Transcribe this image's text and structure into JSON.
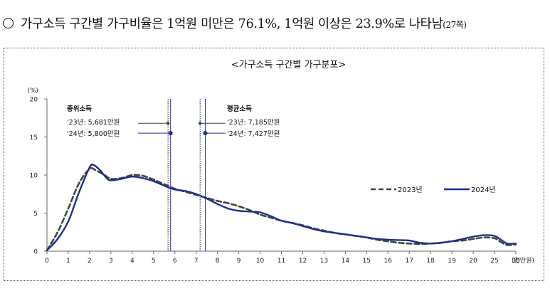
{
  "headline": {
    "text": "가구소득 구간별 가구비율은 1억원 미만은 76.1%, 1억원 이상은 23.9%로 나타남",
    "reference": "(27쪽)"
  },
  "chart_data": {
    "type": "line",
    "title": "<가구소득 구간별 가구분포>",
    "ylabel": "(%)",
    "xlabel": "(천만원)",
    "ylim": [
      0,
      20
    ],
    "yticks": [
      0,
      5,
      10,
      15,
      20
    ],
    "xlim": [
      0,
      22
    ],
    "x_ticks": [
      {
        "x": 0,
        "label": "0"
      },
      {
        "x": 1,
        "label": "1"
      },
      {
        "x": 2,
        "label": "2"
      },
      {
        "x": 3,
        "label": "3"
      },
      {
        "x": 4,
        "label": "4"
      },
      {
        "x": 5,
        "label": "5"
      },
      {
        "x": 6,
        "label": "6"
      },
      {
        "x": 7,
        "label": "7"
      },
      {
        "x": 8,
        "label": "8"
      },
      {
        "x": 9,
        "label": "9"
      },
      {
        "x": 10,
        "label": "10"
      },
      {
        "x": 11,
        "label": "11"
      },
      {
        "x": 12,
        "label": "12"
      },
      {
        "x": 13,
        "label": "13"
      },
      {
        "x": 14,
        "label": "14"
      },
      {
        "x": 15,
        "label": "15"
      },
      {
        "x": 16,
        "label": "16"
      },
      {
        "x": 17,
        "label": "17"
      },
      {
        "x": 18,
        "label": "18"
      },
      {
        "x": 19,
        "label": "19"
      },
      {
        "x": 20,
        "label": "20"
      },
      {
        "x": 21,
        "label": "25"
      },
      {
        "x": 22,
        "label": "30"
      }
    ],
    "series": [
      {
        "name": "2023년",
        "color": "#3d4a36",
        "style": "dashed",
        "points": [
          [
            0,
            0.1
          ],
          [
            0.5,
            2.5
          ],
          [
            1,
            5.6
          ],
          [
            1.5,
            8.9
          ],
          [
            2,
            10.8
          ],
          [
            2.3,
            10.6
          ],
          [
            2.7,
            10.0
          ],
          [
            3,
            9.5
          ],
          [
            3.5,
            9.6
          ],
          [
            4,
            10.0
          ],
          [
            4.5,
            9.9
          ],
          [
            5,
            9.4
          ],
          [
            5.5,
            8.8
          ],
          [
            6,
            8.2
          ],
          [
            6.5,
            7.8
          ],
          [
            7,
            7.4
          ],
          [
            7.5,
            7.0
          ],
          [
            8,
            6.6
          ],
          [
            8.5,
            6.3
          ],
          [
            9,
            5.9
          ],
          [
            9.5,
            5.4
          ],
          [
            10,
            4.8
          ],
          [
            10.5,
            4.4
          ],
          [
            11,
            4.0
          ],
          [
            11.5,
            3.7
          ],
          [
            12,
            3.4
          ],
          [
            12.5,
            3.0
          ],
          [
            13,
            2.7
          ],
          [
            13.5,
            2.4
          ],
          [
            14,
            2.2
          ],
          [
            14.5,
            2.0
          ],
          [
            15,
            1.8
          ],
          [
            15.5,
            1.5
          ],
          [
            16,
            1.3
          ],
          [
            16.5,
            1.1
          ],
          [
            17,
            1.0
          ],
          [
            17.5,
            0.95
          ],
          [
            18,
            1.0
          ],
          [
            18.5,
            1.1
          ],
          [
            19,
            1.3
          ],
          [
            19.5,
            1.4
          ],
          [
            20,
            1.6
          ],
          [
            20.5,
            1.8
          ],
          [
            21,
            1.7
          ],
          [
            21.3,
            1.2
          ],
          [
            21.6,
            0.8
          ],
          [
            22,
            0.9
          ]
        ]
      },
      {
        "name": "2024년",
        "color": "#1d2f8e",
        "style": "solid",
        "points": [
          [
            0,
            0.1
          ],
          [
            0.5,
            1.6
          ],
          [
            1,
            3.9
          ],
          [
            1.5,
            7.7
          ],
          [
            2,
            11.0
          ],
          [
            2.2,
            11.3
          ],
          [
            2.5,
            10.6
          ],
          [
            2.8,
            9.6
          ],
          [
            3,
            9.3
          ],
          [
            3.5,
            9.5
          ],
          [
            4,
            9.8
          ],
          [
            4.5,
            9.6
          ],
          [
            5,
            9.2
          ],
          [
            5.5,
            8.6
          ],
          [
            6,
            8.1
          ],
          [
            6.5,
            7.9
          ],
          [
            7,
            7.5
          ],
          [
            7.5,
            6.9
          ],
          [
            8,
            6.2
          ],
          [
            8.5,
            5.6
          ],
          [
            9,
            5.3
          ],
          [
            9.5,
            5.2
          ],
          [
            10,
            5.1
          ],
          [
            10.5,
            4.6
          ],
          [
            11,
            4.0
          ],
          [
            11.5,
            3.7
          ],
          [
            12,
            3.3
          ],
          [
            12.5,
            2.9
          ],
          [
            13,
            2.6
          ],
          [
            13.5,
            2.4
          ],
          [
            14,
            2.2
          ],
          [
            14.5,
            2.0
          ],
          [
            15,
            1.8
          ],
          [
            15.5,
            1.6
          ],
          [
            16,
            1.5
          ],
          [
            16.5,
            1.45
          ],
          [
            17,
            1.4
          ],
          [
            17.5,
            1.1
          ],
          [
            18,
            1.0
          ],
          [
            18.5,
            1.1
          ],
          [
            19,
            1.3
          ],
          [
            19.5,
            1.6
          ],
          [
            20,
            1.9
          ],
          [
            20.5,
            2.1
          ],
          [
            21,
            2.0
          ],
          [
            21.3,
            1.5
          ],
          [
            21.6,
            1.0
          ],
          [
            22,
            1.0
          ]
        ]
      }
    ],
    "legend": {
      "position": "right",
      "items": [
        "2023년",
        "2024년"
      ]
    },
    "annotations": {
      "median": {
        "label": "중위소득",
        "line_2023": {
          "label": "'23년: 5,681만원",
          "x": 5.681,
          "marker_y": 16.8
        },
        "line_2024": {
          "label": "'24년: 5,800만원",
          "x": 5.8,
          "marker_y": 15.5
        }
      },
      "mean": {
        "label": "평균소득",
        "line_2023": {
          "label": "'23년: 7,185만원",
          "x": 7.185,
          "marker_y": 16.8
        },
        "line_2024": {
          "label": "'24년: 7,427만원",
          "x": 7.427,
          "marker_y": 15.5
        }
      }
    }
  }
}
